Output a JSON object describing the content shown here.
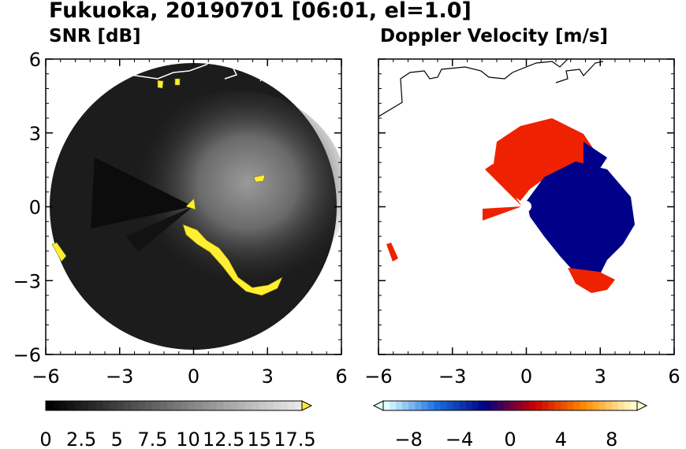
{
  "title": "Fukuoka, 20190701 [06:01, el=1.0]",
  "panels": {
    "left": {
      "subtitle": "SNR [dB]"
    },
    "right": {
      "subtitle": "Doppler Velocity [m/s]"
    }
  },
  "colors": {
    "snr_low": "#000000",
    "snr_high": "#e8e8e8",
    "snr_over": "#ffee33",
    "vel_neg_strong": "#e0ffff",
    "vel_neg_mid": "#1a6fe0",
    "vel_neg_weak": "#000080",
    "vel_pos_weak": "#cc0000",
    "vel_pos_mid": "#ff8c00",
    "vel_pos_strong": "#ffffcc",
    "coastline": "#ffffff"
  },
  "chart_data": [
    {
      "type": "heatmap",
      "name": "SNR",
      "title": "SNR [dB]",
      "x_ticks": [
        -6,
        -3,
        0,
        3,
        6
      ],
      "y_ticks": [
        -6,
        -3,
        0,
        3,
        6
      ],
      "xlim": [
        -6,
        6
      ],
      "ylim": [
        -6,
        6
      ],
      "colorbar": {
        "min": 0,
        "max": 18,
        "ticks": [
          "0",
          "2.5",
          "5",
          "7.5",
          "10",
          "12.5",
          "15",
          "17.5"
        ],
        "extend": "max"
      },
      "range_radius": 5.8
    },
    {
      "type": "heatmap",
      "name": "Doppler Velocity",
      "title": "Doppler Velocity [m/s]",
      "x_ticks": [
        -6,
        -3,
        0,
        3,
        6
      ],
      "y_ticks": [
        -6,
        -3,
        0,
        3,
        6
      ],
      "xlim": [
        -6,
        6
      ],
      "ylim": [
        -6,
        6
      ],
      "colorbar": {
        "min": -10,
        "max": 10,
        "ticks": [
          "−8",
          "−4",
          "0",
          "4",
          "8"
        ],
        "extend": "both"
      }
    }
  ]
}
